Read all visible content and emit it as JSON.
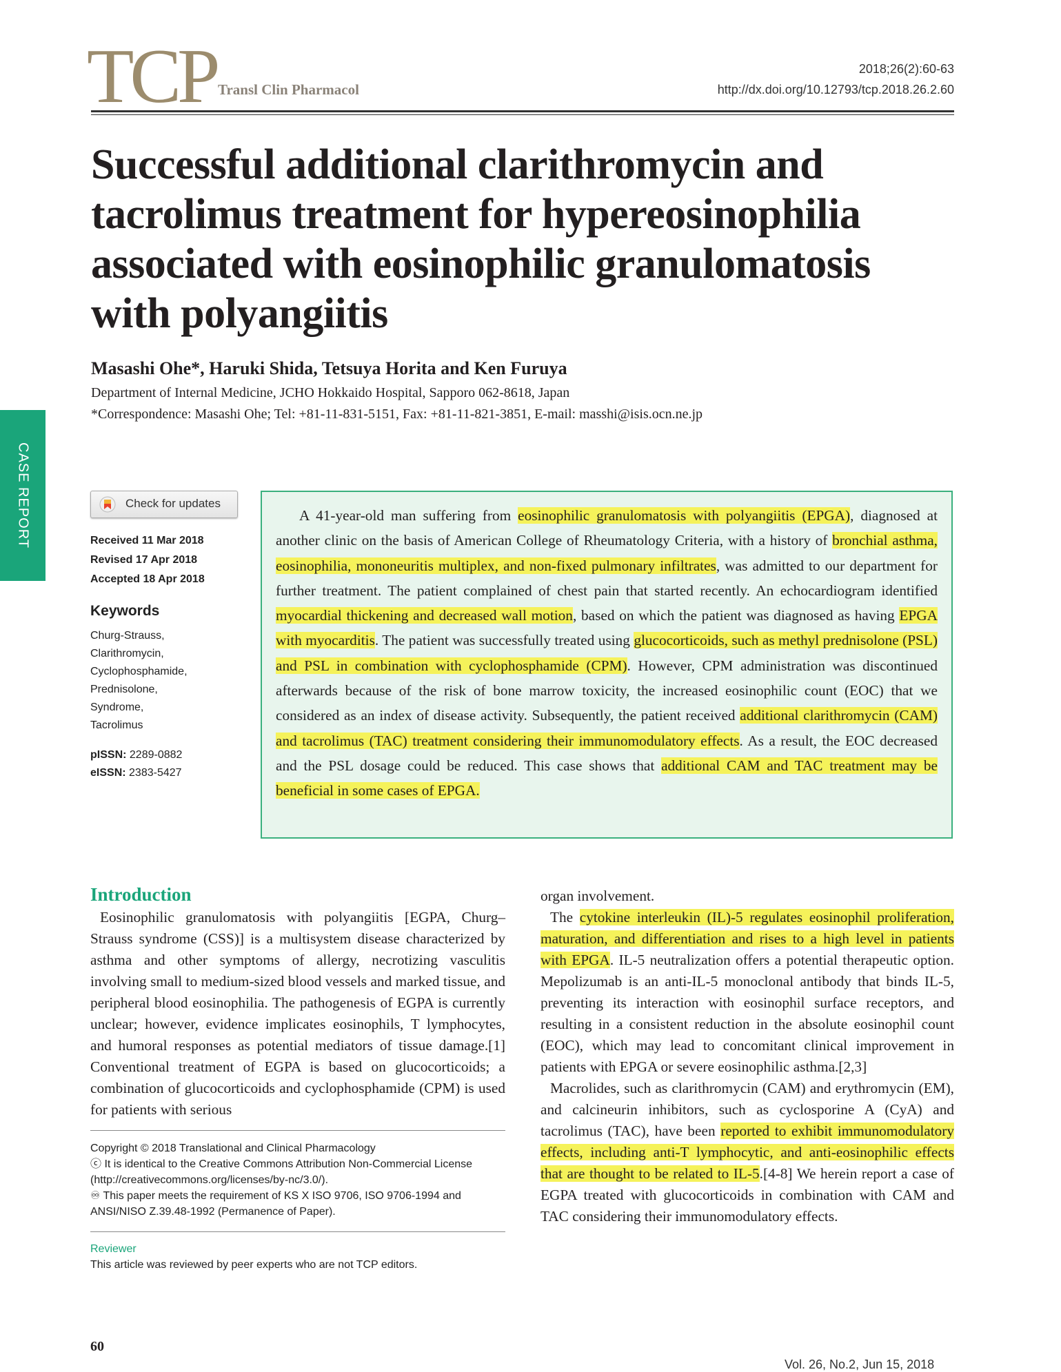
{
  "header": {
    "logo": "TCP",
    "journal": "Transl Clin Pharmacol",
    "issue": "2018;26(2):60-63",
    "doi": "http://dx.doi.org/10.12793/tcp.2018.26.2.60"
  },
  "side_tab": "CASE REPORT",
  "article": {
    "title": "Successful additional clarithromycin and tacrolimus treatment for hypereosinophilia associated with eosinophilic granulomatosis with polyangiitis",
    "authors": "Masashi Ohe*, Haruki Shida, Tetsuya Horita and  Ken Furuya",
    "affiliation": "Department of Internal Medicine, JCHO Hokkaido Hospital, Sapporo 062-8618, Japan",
    "correspondence": "*Correspondence: Masashi Ohe; Tel: +81-11-831-5151, Fax: +81-11-821-3851, E-mail: masshi@isis.ocn.ne.jp"
  },
  "meta": {
    "check_updates": "Check for updates",
    "received": "Received 11 Mar 2018",
    "revised": "Revised  17 Apr 2018",
    "accepted": "Accepted 18 Apr 2018",
    "keywords_title": "Keywords",
    "keywords": [
      "Churg-Strauss,",
      "Clarithromycin,",
      "Cyclophosphamide,",
      "Prednisolone,",
      "Syndrome,",
      "Tacrolimus"
    ],
    "pissn_label": "pISSN:",
    "pissn": "2289-0882",
    "eissn_label": "eISSN:",
    "eissn": "2383-5427"
  },
  "abstract": {
    "s1": "A 41-year-old man suffering from ",
    "h1": "eosinophilic granulomatosis with polyangiitis (EPGA)",
    "s2": ", diagnosed at another clinic on the basis of American College of Rheumatology Criteria, with a history of ",
    "h2": "bronchial asthma, eosinophilia, mononeuritis multiplex, and non-fixed pulmonary infiltrates",
    "s3": ", was admitted to our department for further treatment. The patient complained of chest pain that started recently. An echocardiogram identified ",
    "h3": "myocardial thickening and decreased wall motion",
    "s4": ", based on which the patient was diagnosed as having ",
    "h4": "EPGA with myocarditis",
    "s5": ". The patient was successfully treated using ",
    "h5": "glucocorticoids, such as methyl prednisolone (PSL) and PSL in combination with cyclophosphamide (CPM)",
    "s6": ". However, CPM administration was discontinued afterwards because of the risk of bone marrow toxicity, the increased eosinophilic count (EOC) that we considered as an index of disease activity. Subsequently, the patient received ",
    "h6": "additional clarithromycin (CAM) and tacrolimus (TAC) treatment considering their immunomodulatory effects",
    "s7": ". As a result, the EOC decreased and the PSL dosage could be reduced. This case shows that ",
    "h7": "additional CAM and TAC treatment may be beneficial in some cases of EPGA."
  },
  "intro": {
    "heading": "Introduction",
    "p1": "Eosinophilic granulomatosis with polyangiitis [EGPA, Churg–Strauss syndrome (CSS)] is a multisystem disease characterized by asthma and other symptoms of allergy, necrotizing vasculitis involving small to medium-sized blood vessels and marked tissue, and peripheral blood eosinophilia. The pathogenesis of EGPA is currently unclear; however, evidence implicates eosinophils, T lymphocytes, and humoral responses as potential mediators of tissue damage.[1] Conventional treatment of EGPA is based on glucocorticoids; a combination of glucocorticoids and cyclophosphamide (CPM) is used for patients with serious",
    "r0": "organ involvement.",
    "r1a": "The ",
    "r1h": "cytokine interleukin (IL)-5 regulates eosinophil proliferation, maturation, and differentiation and rises to a high level in patients with EPGA",
    "r1b": ". IL-5 neutralization offers a potential therapeutic option. Mepolizumab is an anti-IL-5 monoclonal antibody that binds IL-5, preventing its interaction with eosinophil surface receptors, and resulting in a consistent reduction in the absolute eosinophil count (EOC), which may lead to concomitant clinical improvement in patients with EPGA or severe eosinophilic asthma.[2,3]",
    "r2a": "Macrolides, such as clarithromycin (CAM) and erythromycin (EM), and calcineurin inhibitors, such as cyclosporine A (CyA) and tacrolimus (TAC), have been ",
    "r2h": "reported to exhibit immunomodulatory effects, including anti-T lymphocytic, and anti-eosinophilic effects that are thought to be related to IL-5",
    "r2b": ".[4-8] We herein report a case of EGPA treated with glucocorticoids in combination with CAM and TAC considering their immunomodulatory effects."
  },
  "copyright": {
    "line1": "Copyright © 2018 Translational and Clinical Pharmacology",
    "line2": "It is identical to the Creative Commons Attribution Non-Commercial License (http://creativecommons.org/licenses/by-nc/3.0/).",
    "line3": "This paper meets the requirement of KS X ISO 9706, ISO 9706-1994 and ANSI/NISO Z.39.48-1992 (Permanence of Paper)."
  },
  "reviewer": {
    "title": "Reviewer",
    "text": "This article was reviewed by peer experts who are not TCP editors."
  },
  "footer": {
    "page": "60",
    "volume": "Vol. 26, No.2, Jun 15, 2018"
  },
  "colors": {
    "accent": "#1aa57a",
    "highlight": "#f5f25a",
    "logo": "#9c8c6d"
  }
}
